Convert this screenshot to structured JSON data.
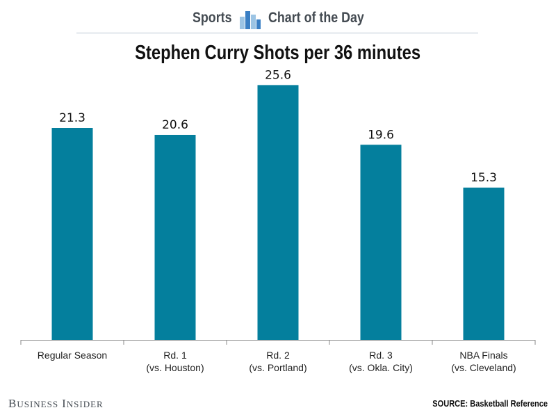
{
  "header": {
    "left": "Sports",
    "right": "Chart of the Day",
    "icon": "bar-chart-icon"
  },
  "footer": {
    "brand": "Business Insider",
    "source": "SOURCE: Basketball Reference"
  },
  "colors": {
    "bar": "#047f9d",
    "icon_light": "#9cc4e4",
    "icon_dark": "#3a7fc4"
  },
  "chart_data": {
    "type": "bar",
    "title": "Stephen Curry Shots per 36 minutes",
    "categories": [
      [
        "Regular Season"
      ],
      [
        "Rd. 1",
        "(vs. Houston)"
      ],
      [
        "Rd. 2",
        "(vs. Portland)"
      ],
      [
        "Rd. 3",
        "(vs. Okla. City)"
      ],
      [
        "NBA Finals",
        "(vs. Cleveland)"
      ]
    ],
    "values": [
      21.3,
      20.6,
      25.6,
      19.6,
      15.3
    ],
    "value_labels": [
      "21.3",
      "20.6",
      "25.6",
      "19.6",
      "15.3"
    ],
    "xlabel": "",
    "ylabel": "",
    "ylim": [
      0,
      28
    ],
    "grid": false,
    "legend": "none"
  }
}
